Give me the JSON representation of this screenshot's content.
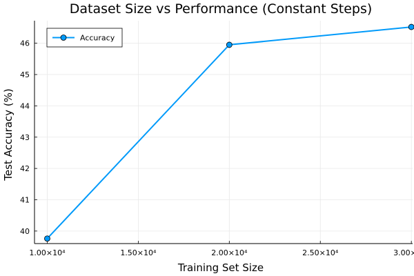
{
  "chart_data": {
    "type": "line",
    "title": "Dataset Size vs Performance (Constant Steps)",
    "xlabel": "Training Set Size",
    "ylabel": "Test Accuracy (%)",
    "x": [
      10000,
      20000,
      30000
    ],
    "series": [
      {
        "name": "Accuracy",
        "values": [
          39.76,
          45.95,
          46.52
        ]
      }
    ],
    "xlim": [
      9300,
      30070
    ],
    "ylim": [
      39.6,
      46.72
    ],
    "xticks": [
      10000,
      15000,
      20000,
      25000,
      30000
    ],
    "xtick_labels": [
      "1.00×10⁴",
      "1.50×10⁴",
      "2.00×10⁴",
      "2.50×10⁴",
      "3.00×10⁴"
    ],
    "yticks": [
      40,
      41,
      42,
      43,
      44,
      45,
      46
    ],
    "ytick_labels": [
      "40",
      "41",
      "42",
      "43",
      "44",
      "45",
      "46"
    ],
    "grid": true,
    "legend": "top-left",
    "colors": {
      "series": "#009AFA",
      "marker_edge": "#000000"
    }
  }
}
